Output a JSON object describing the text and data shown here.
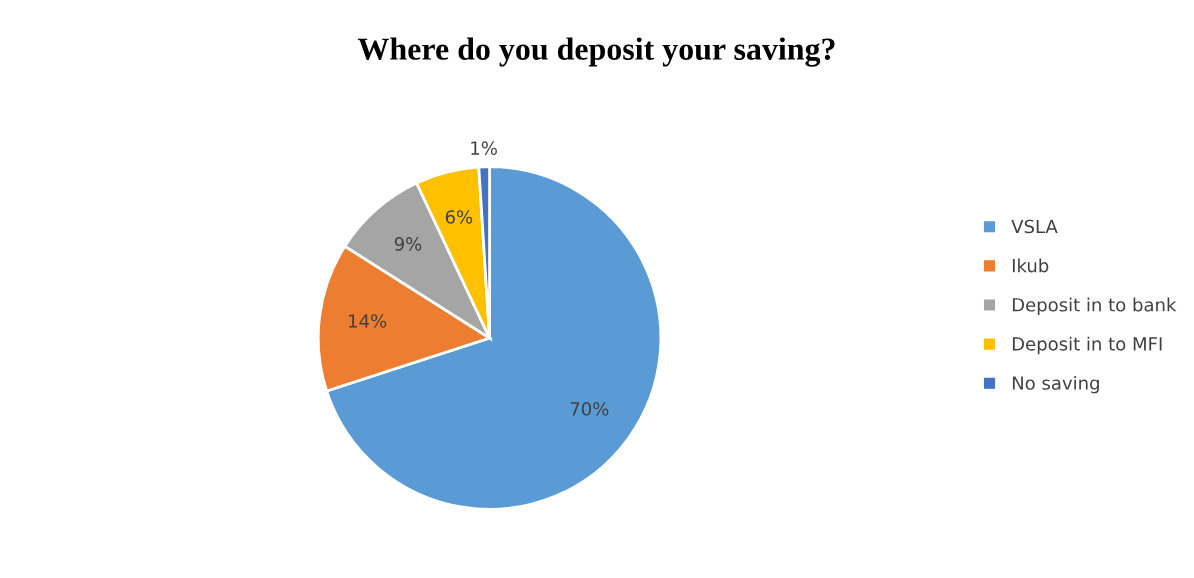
{
  "chart_data": {
    "type": "pie",
    "title": "Where do you deposit your saving?",
    "categories": [
      "VSLA",
      "Ikub",
      "Deposit in to bank",
      "Deposit in to MFI",
      "No saving"
    ],
    "values": [
      70,
      14,
      9,
      6,
      1
    ],
    "value_labels": [
      "70%",
      "14%",
      "9%",
      "6%",
      "1%"
    ],
    "colors": [
      "#5b9bd5",
      "#ed7d31",
      "#a5a5a5",
      "#ffc000",
      "#4472c4"
    ],
    "legend": "right"
  }
}
